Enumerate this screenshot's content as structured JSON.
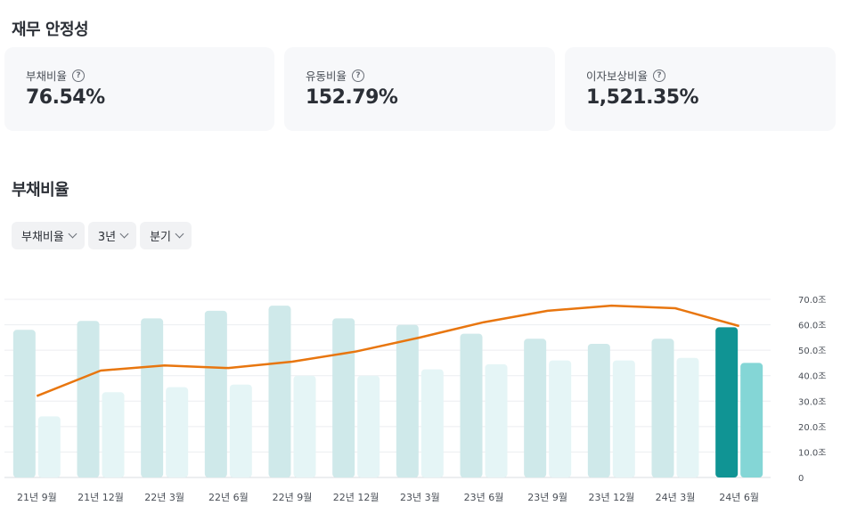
{
  "section1": {
    "title": "재무 안정성"
  },
  "cards": [
    {
      "label": "부채비율",
      "value": "76.54%"
    },
    {
      "label": "유동비율",
      "value": "152.79%"
    },
    {
      "label": "이자보상비율",
      "value": "1,521.35%"
    }
  ],
  "section2": {
    "title": "부채비율"
  },
  "filters": [
    {
      "label": "부채비율"
    },
    {
      "label": "3년"
    },
    {
      "label": "분기"
    }
  ],
  "colors": {
    "bar_primary": "#cfe9ea",
    "bar_secondary": "#e5f5f6",
    "bar_primary_highlight": "#109494",
    "bar_secondary_highlight": "#84d6d6",
    "line": "#e8760f"
  },
  "chart_data": {
    "type": "bar",
    "categories": [
      "21년 9월",
      "21년 12월",
      "22년 3월",
      "22년 6월",
      "22년 9월",
      "22년 12월",
      "23년 3월",
      "23년 6월",
      "23년 9월",
      "23년 12월",
      "24년 3월",
      "24년 6월"
    ],
    "yticks": [
      "0",
      "10.0조",
      "20.0조",
      "30.0조",
      "40.0조",
      "50.0조",
      "60.0조",
      "70.0조"
    ],
    "ylim": [
      0,
      70
    ],
    "series": [
      {
        "values": [
          58,
          61.5,
          62.5,
          65.5,
          67.5,
          62.5,
          60,
          56.5,
          54.5,
          52.5,
          54.5,
          59
        ]
      },
      {
        "values": [
          24,
          33.5,
          35.5,
          36.5,
          40,
          40,
          42.5,
          44.5,
          46,
          46,
          47,
          45
        ]
      },
      {
        "values": [
          32,
          42,
          44,
          43,
          45.5,
          49.5,
          55,
          61,
          65.5,
          67.5,
          66.5,
          59.5
        ]
      }
    ],
    "highlight_index": 11,
    "grid": true
  }
}
